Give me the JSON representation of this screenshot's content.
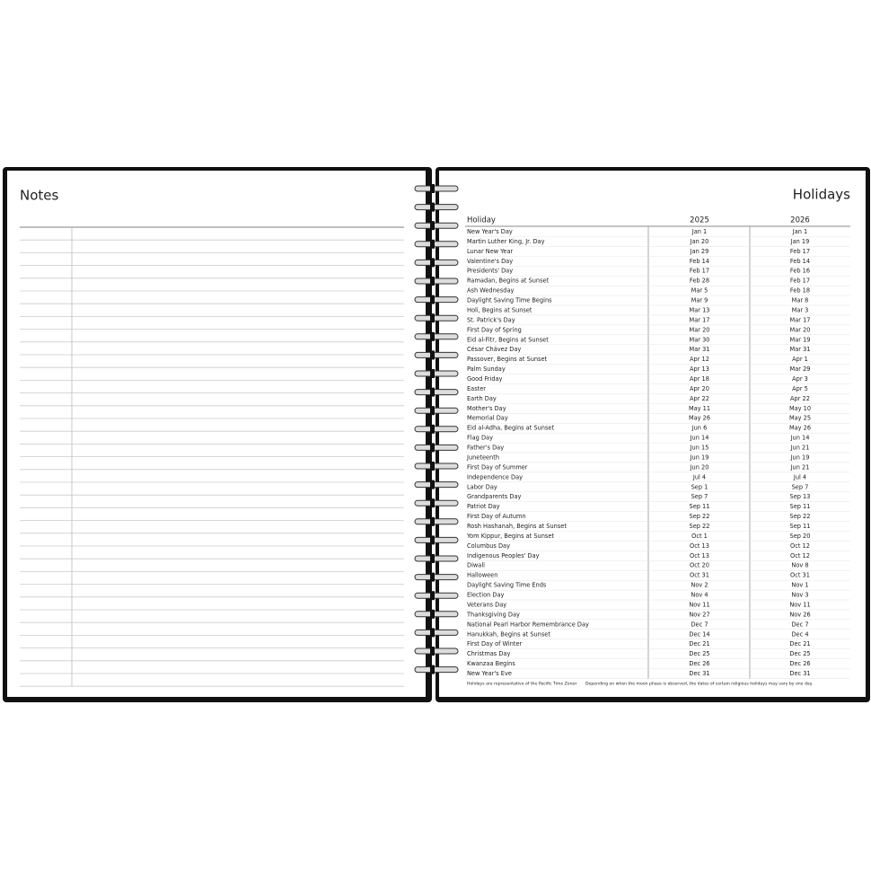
{
  "notes": {
    "title": "Notes"
  },
  "holidays": {
    "title": "Holidays",
    "columns": [
      "Holiday",
      "2025",
      "2026"
    ],
    "rows": [
      [
        "New Year's Day",
        "Jan 1",
        "Jan 1"
      ],
      [
        "Martin Luther King, Jr. Day",
        "Jan 20",
        "Jan 19"
      ],
      [
        "Lunar New Year",
        "Jan 29",
        "Feb 17"
      ],
      [
        "Valentine's Day",
        "Feb 14",
        "Feb 14"
      ],
      [
        "Presidents' Day",
        "Feb 17",
        "Feb 16"
      ],
      [
        "Ramadan, Begins at Sunset",
        "Feb 28",
        "Feb 17"
      ],
      [
        "Ash Wednesday",
        "Mar 5",
        "Feb 18"
      ],
      [
        "Daylight Saving Time Begins",
        "Mar 9",
        "Mar 8"
      ],
      [
        "Holi, Begins at Sunset",
        "Mar 13",
        "Mar 3"
      ],
      [
        "St. Patrick's Day",
        "Mar 17",
        "Mar 17"
      ],
      [
        "First Day of Spring",
        "Mar 20",
        "Mar 20"
      ],
      [
        "Eid al-Fitr, Begins at Sunset",
        "Mar 30",
        "Mar 19"
      ],
      [
        "César Chávez Day",
        "Mar 31",
        "Mar 31"
      ],
      [
        "Passover, Begins at Sunset",
        "Apr 12",
        "Apr 1"
      ],
      [
        "Palm Sunday",
        "Apr 13",
        "Mar 29"
      ],
      [
        "Good Friday",
        "Apr 18",
        "Apr 3"
      ],
      [
        "Easter",
        "Apr 20",
        "Apr 5"
      ],
      [
        "Earth Day",
        "Apr 22",
        "Apr 22"
      ],
      [
        "Mother's Day",
        "May 11",
        "May 10"
      ],
      [
        "Memorial Day",
        "May 26",
        "May 25"
      ],
      [
        "Eid al-Adha, Begins at Sunset",
        "Jun 6",
        "May 26"
      ],
      [
        "Flag Day",
        "Jun 14",
        "Jun 14"
      ],
      [
        "Father's Day",
        "Jun 15",
        "Jun 21"
      ],
      [
        "Juneteenth",
        "Jun 19",
        "Jun 19"
      ],
      [
        "First Day of Summer",
        "Jun 20",
        "Jun 21"
      ],
      [
        "Independence Day",
        "Jul 4",
        "Jul 4"
      ],
      [
        "Labor Day",
        "Sep 1",
        "Sep 7"
      ],
      [
        "Grandparents Day",
        "Sep 7",
        "Sep 13"
      ],
      [
        "Patriot Day",
        "Sep 11",
        "Sep 11"
      ],
      [
        "First Day of Autumn",
        "Sep 22",
        "Sep 22"
      ],
      [
        "Rosh Hashanah, Begins at Sunset",
        "Sep 22",
        "Sep 11"
      ],
      [
        "Yom Kippur, Begins at Sunset",
        "Oct 1",
        "Sep 20"
      ],
      [
        "Columbus Day",
        "Oct 13",
        "Oct 12"
      ],
      [
        "Indigenous Peoples' Day",
        "Oct 13",
        "Oct 12"
      ],
      [
        "Diwali",
        "Oct 20",
        "Nov 8"
      ],
      [
        "Halloween",
        "Oct 31",
        "Oct 31"
      ],
      [
        "Daylight Saving Time Ends",
        "Nov 2",
        "Nov 1"
      ],
      [
        "Election Day",
        "Nov 4",
        "Nov 3"
      ],
      [
        "Veterans Day",
        "Nov 11",
        "Nov 11"
      ],
      [
        "Thanksgiving Day",
        "Nov 27",
        "Nov 26"
      ],
      [
        "National Pearl Harbor Remembrance Day",
        "Dec 7",
        "Dec 7"
      ],
      [
        "Hanukkah, Begins at Sunset",
        "Dec 14",
        "Dec 4"
      ],
      [
        "First Day of Winter",
        "Dec 21",
        "Dec 21"
      ],
      [
        "Christmas Day",
        "Dec 25",
        "Dec 25"
      ],
      [
        "Kwanzaa Begins",
        "Dec 26",
        "Dec 26"
      ],
      [
        "New Year's Eve",
        "Dec 31",
        "Dec 31"
      ]
    ],
    "notes": [
      "Holidays are representative of the Pacific Time Zone.",
      "Depending on when the moon phase is observed, the dates of certain religious holidays may vary by one day."
    ]
  }
}
